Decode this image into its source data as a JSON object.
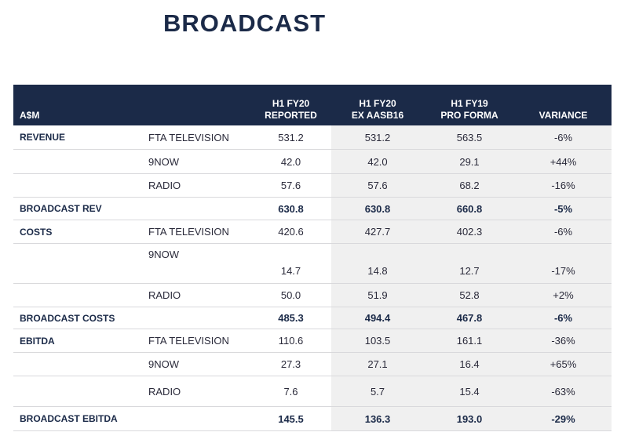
{
  "title": "BROADCAST",
  "table": {
    "headers": {
      "label": "A$M",
      "col1": [
        "H1 FY20",
        "REPORTED"
      ],
      "col2": [
        "H1 FY20",
        "EX AASB16"
      ],
      "col3": [
        "H1 FY19",
        "PRO FORMA"
      ],
      "col4": "VARIANCE"
    },
    "rows": [
      {
        "section": "REVENUE",
        "item": "FTA TELEVISION",
        "v1": "531.2",
        "v2": "531.2",
        "v3": "563.5",
        "var": "-6%"
      },
      {
        "section": "",
        "item": "9NOW",
        "v1": "42.0",
        "v2": "42.0",
        "v3": "29.1",
        "var": "+44%"
      },
      {
        "section": "",
        "item": "RADIO",
        "v1": "57.6",
        "v2": "57.6",
        "v3": "68.2",
        "var": "-16%"
      },
      {
        "section": "BROADCAST REV",
        "item": "",
        "v1": "630.8",
        "v2": "630.8",
        "v3": "660.8",
        "var": "-5%"
      },
      {
        "section": "COSTS",
        "item": "FTA TELEVISION",
        "v1": "420.6",
        "v2": "427.7",
        "v3": "402.3",
        "var": "-6%"
      },
      {
        "section": "",
        "item": "9NOW",
        "v1": "14.7",
        "v2": "14.8",
        "v3": "12.7",
        "var": "-17%"
      },
      {
        "section": "",
        "item": "RADIO",
        "v1": "50.0",
        "v2": "51.9",
        "v3": "52.8",
        "var": "+2%"
      },
      {
        "section": "BROADCAST COSTS",
        "item": "",
        "v1": "485.3",
        "v2": "494.4",
        "v3": "467.8",
        "var": "-6%"
      },
      {
        "section": "EBITDA",
        "item": "FTA TELEVISION",
        "v1": "110.6",
        "v2": "103.5",
        "v3": "161.1",
        "var": "-36%"
      },
      {
        "section": "",
        "item": "9NOW",
        "v1": "27.3",
        "v2": "27.1",
        "v3": "16.4",
        "var": "+65%"
      },
      {
        "section": "",
        "item": "RADIO",
        "v1": "7.6",
        "v2": "5.7",
        "v3": "15.4",
        "var": "-63%"
      },
      {
        "section": "BROADCAST EBITDA",
        "item": "",
        "v1": "145.5",
        "v2": "136.3",
        "v3": "193.0",
        "var": "-29%"
      }
    ]
  },
  "colors": {
    "header_bg": "#1b2a48",
    "shade": "#f0f0f0"
  }
}
